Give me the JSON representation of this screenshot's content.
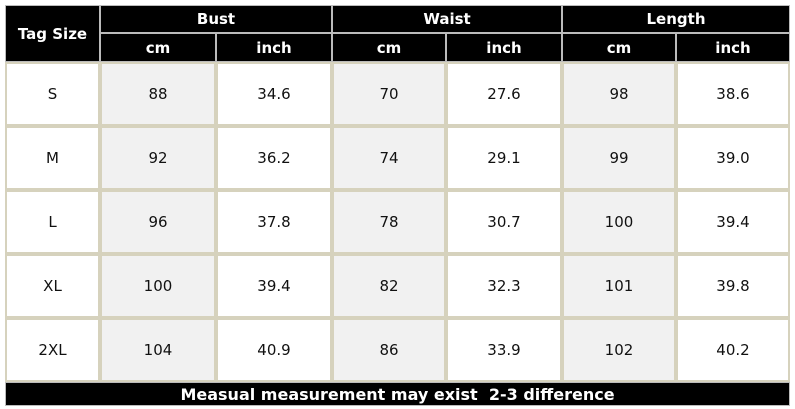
{
  "table": {
    "header": {
      "tag_size": "Tag Size",
      "groups": [
        {
          "name": "Bust",
          "units": [
            "cm",
            "inch"
          ]
        },
        {
          "name": "Waist",
          "units": [
            "cm",
            "inch"
          ]
        },
        {
          "name": "Length",
          "units": [
            "cm",
            "inch"
          ]
        }
      ]
    },
    "rows": [
      [
        "S",
        "88",
        "34.6",
        "70",
        "27.6",
        "98",
        "38.6"
      ],
      [
        "M",
        "92",
        "36.2",
        "74",
        "29.1",
        "99",
        "39.0"
      ],
      [
        "L",
        "96",
        "37.8",
        "78",
        "30.7",
        "100",
        "39.4"
      ],
      [
        "XL",
        "100",
        "39.4",
        "82",
        "32.3",
        "101",
        "39.8"
      ],
      [
        "2XL",
        "104",
        "40.9",
        "86",
        "33.9",
        "102",
        "40.2"
      ]
    ],
    "footer": "Measual measurement may exist  2-3 difference"
  }
}
